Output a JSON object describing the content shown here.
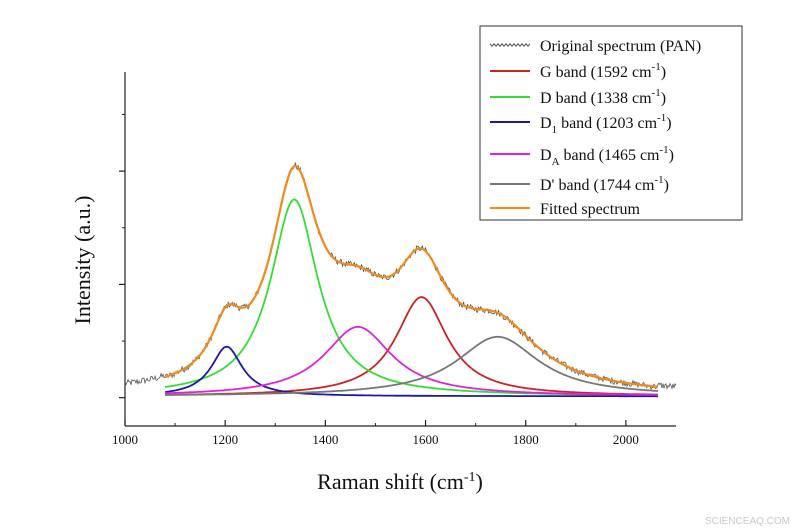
{
  "chart_data": {
    "type": "line",
    "xlabel": "Raman shift (cm",
    "xlabel_sup": "-1",
    "xlabel_end": ")",
    "ylabel": "Intensity (a.u.)",
    "xlim": [
      1000,
      2100
    ],
    "ylim": [
      0,
      1.25
    ],
    "x_ticks": [
      1000,
      1200,
      1400,
      1600,
      1800,
      2000
    ],
    "x_tick_labels": [
      "1000",
      "1200",
      "1400",
      "1600",
      "1800",
      "2000"
    ],
    "y_ticks_major": [
      0.1,
      0.5,
      0.9
    ],
    "y_ticks_minor": [
      0.3,
      0.7,
      1.1
    ],
    "legend_position": "top-right",
    "original_spectrum": {
      "name": "Original spectrum (PAN)",
      "color": "#555555",
      "x_range": [
        1000,
        2100
      ],
      "noise_amplitude": 0.012,
      "offset_outside_fit": 0.005
    },
    "fit_x_range": [
      1080,
      2065
    ],
    "baseline": 0.105,
    "bands": [
      {
        "key": "G",
        "pre": "G",
        "sub": "",
        "label": " band (1592 cm",
        "sup": "-1",
        "end": ")",
        "center": 1592,
        "height": 0.35,
        "fwhm": 125,
        "color": "#cc2222"
      },
      {
        "key": "D",
        "pre": "D",
        "sub": "",
        "label": " band (1338 cm",
        "sup": "-1",
        "end": ")",
        "center": 1338,
        "height": 0.695,
        "fwhm": 115,
        "color": "#33dd33"
      },
      {
        "key": "D1",
        "pre": "D",
        "sub": "1",
        "label": " band (1203 cm",
        "sup": "-1",
        "end": ")",
        "center": 1203,
        "height": 0.175,
        "fwhm": 75,
        "color": "#1a1aaa"
      },
      {
        "key": "DA",
        "pre": "D",
        "sub": "A",
        "label": " band (1465 cm",
        "sup": "-1",
        "end": ")",
        "center": 1465,
        "height": 0.245,
        "fwhm": 165,
        "color": "#dd22dd"
      },
      {
        "key": "Dp",
        "pre": "D'",
        "sub": "",
        "label": " band (1744 cm",
        "sup": "-1",
        "end": ")",
        "center": 1744,
        "height": 0.21,
        "fwhm": 200,
        "color": "#777777"
      }
    ],
    "fitted_spectrum": {
      "name": "Fitted spectrum",
      "color": "#f08a1c"
    }
  },
  "watermark": {
    "text": "SCIENCEAQ.COM"
  }
}
